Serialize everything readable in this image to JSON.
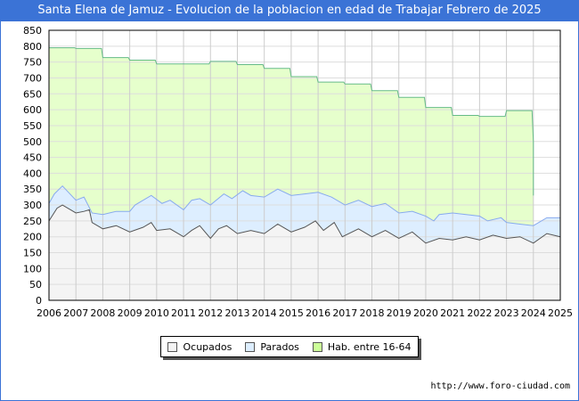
{
  "title": "Santa Elena de Jamuz - Evolucion de la poblacion en edad de Trabajar Febrero de 2025",
  "url": "http://www.foro-ciudad.com",
  "chart_data": {
    "type": "area",
    "title": "Santa Elena de Jamuz - Evolucion de la poblacion en edad de Trabajar Febrero de 2025",
    "xlim": [
      2006,
      2025
    ],
    "ylim": [
      0,
      850
    ],
    "yticks": [
      0,
      50,
      100,
      150,
      200,
      250,
      300,
      350,
      400,
      450,
      500,
      550,
      600,
      650,
      700,
      750,
      800,
      850
    ],
    "xticks": [
      2006,
      2007,
      2008,
      2009,
      2010,
      2011,
      2012,
      2013,
      2014,
      2015,
      2016,
      2017,
      2018,
      2019,
      2020,
      2021,
      2022,
      2023,
      2024,
      2025
    ],
    "grid": true,
    "legend_position": "bottom",
    "series": [
      {
        "name": "Hab. entre 16-64",
        "color": "#e6ffcc",
        "line": "#66bb88",
        "x": [
          2006,
          2006.95,
          2007,
          2007.95,
          2008,
          2008.95,
          2009,
          2009.95,
          2010,
          2010.95,
          2011,
          2011.95,
          2012,
          2012.95,
          2013,
          2013.95,
          2014,
          2014.95,
          2015,
          2015.95,
          2016,
          2016.95,
          2017,
          2017.95,
          2018,
          2018.95,
          2019,
          2019.95,
          2020,
          2020.95,
          2021,
          2021.95,
          2022,
          2022.95,
          2023,
          2023.95,
          2024,
          2024
        ],
        "y": [
          795,
          795,
          793,
          793,
          764,
          764,
          756,
          756,
          744,
          744,
          744,
          744,
          752,
          752,
          742,
          742,
          730,
          730,
          704,
          704,
          687,
          687,
          681,
          681,
          660,
          660,
          639,
          639,
          607,
          607,
          582,
          582,
          579,
          579,
          597,
          597,
          500,
          330
        ]
      },
      {
        "name": "Parados",
        "color": "#ddeeff",
        "line": "#88aaee",
        "x": [
          2006,
          2006.2,
          2006.5,
          2007,
          2007.3,
          2007.6,
          2008,
          2008.5,
          2009,
          2009.2,
          2009.8,
          2010.2,
          2010.5,
          2011,
          2011.3,
          2011.6,
          2012,
          2012.5,
          2012.8,
          2013.2,
          2013.5,
          2014,
          2014.5,
          2015,
          2015.5,
          2016,
          2016.5,
          2017,
          2017.5,
          2018,
          2018.5,
          2019,
          2019.5,
          2020,
          2020.3,
          2020.5,
          2021,
          2021.5,
          2022,
          2022.3,
          2022.8,
          2023,
          2023.5,
          2024,
          2024.5,
          2025
        ],
        "y": [
          305,
          335,
          360,
          315,
          325,
          275,
          270,
          280,
          280,
          300,
          330,
          305,
          315,
          285,
          315,
          320,
          300,
          335,
          320,
          345,
          330,
          325,
          350,
          330,
          335,
          340,
          325,
          300,
          315,
          295,
          305,
          275,
          280,
          265,
          250,
          270,
          275,
          270,
          265,
          250,
          260,
          245,
          240,
          235,
          260,
          260
        ]
      },
      {
        "name": "Ocupados",
        "color": "#f4f4f4",
        "line": "#555555",
        "x": [
          2006,
          2006.3,
          2006.5,
          2007,
          2007.3,
          2007.5,
          2007.6,
          2008,
          2008.5,
          2009,
          2009.5,
          2009.8,
          2010,
          2010.5,
          2011,
          2011.3,
          2011.6,
          2012,
          2012.3,
          2012.6,
          2013,
          2013.5,
          2014,
          2014.5,
          2015,
          2015.5,
          2015.9,
          2016.2,
          2016.6,
          2016.9,
          2017.5,
          2018,
          2018.5,
          2019,
          2019.5,
          2020,
          2020.5,
          2021,
          2021.5,
          2022,
          2022.5,
          2023,
          2023.5,
          2024,
          2024.5,
          2025
        ],
        "y": [
          250,
          290,
          300,
          275,
          280,
          285,
          245,
          225,
          235,
          215,
          230,
          245,
          220,
          225,
          200,
          220,
          235,
          195,
          225,
          235,
          210,
          220,
          210,
          240,
          215,
          230,
          250,
          220,
          245,
          200,
          225,
          200,
          220,
          195,
          215,
          180,
          195,
          190,
          200,
          190,
          205,
          195,
          200,
          180,
          210,
          200
        ]
      }
    ]
  }
}
